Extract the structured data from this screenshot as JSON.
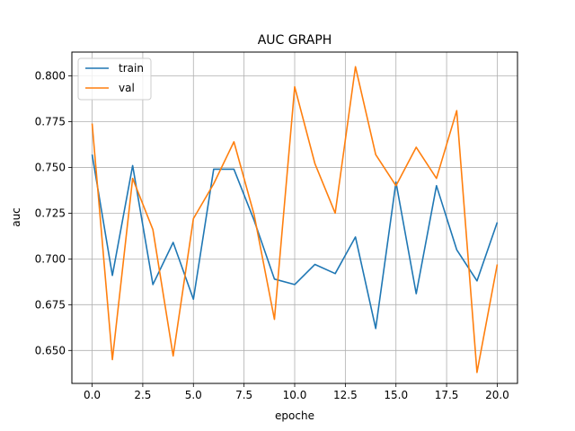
{
  "chart_data": {
    "type": "line",
    "title": "AUC GRAPH",
    "xlabel": "epoche",
    "ylabel": "auc",
    "xlim": [
      -1.0,
      21.0
    ],
    "ylim": [
      0.632,
      0.813
    ],
    "xticks": [
      0.0,
      2.5,
      5.0,
      7.5,
      10.0,
      12.5,
      15.0,
      17.5,
      20.0
    ],
    "xtick_labels": [
      "0.0",
      "2.5",
      "5.0",
      "7.5",
      "10.0",
      "12.5",
      "15.0",
      "17.5",
      "20.0"
    ],
    "yticks": [
      0.65,
      0.675,
      0.7,
      0.725,
      0.75,
      0.775,
      0.8
    ],
    "ytick_labels": [
      "0.650",
      "0.675",
      "0.700",
      "0.725",
      "0.750",
      "0.775",
      "0.800"
    ],
    "grid": true,
    "legend_position": "top-left",
    "x": [
      0,
      1,
      2,
      3,
      4,
      5,
      6,
      7,
      8,
      9,
      10,
      11,
      12,
      13,
      14,
      15,
      16,
      17,
      18,
      19,
      20
    ],
    "series": [
      {
        "name": "train",
        "color": "#1f77b4",
        "values": [
          0.757,
          0.691,
          0.751,
          0.686,
          0.709,
          0.678,
          0.749,
          0.749,
          0.721,
          0.689,
          0.686,
          0.697,
          0.692,
          0.712,
          0.662,
          0.742,
          0.681,
          0.74,
          0.705,
          0.688,
          0.72
        ]
      },
      {
        "name": "val",
        "color": "#ff7f0e",
        "values": [
          0.774,
          0.645,
          0.744,
          0.716,
          0.647,
          0.722,
          0.741,
          0.764,
          0.724,
          0.667,
          0.794,
          0.752,
          0.725,
          0.805,
          0.757,
          0.74,
          0.761,
          0.744,
          0.781,
          0.638,
          0.697
        ]
      }
    ]
  }
}
